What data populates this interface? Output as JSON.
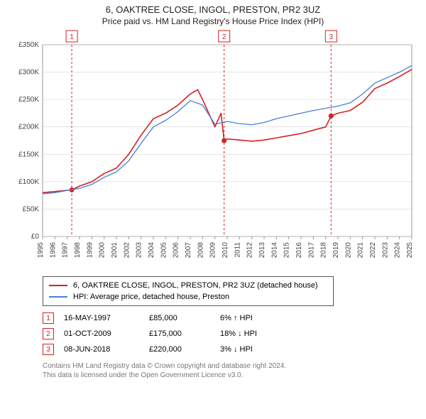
{
  "title": "6, OAKTREE CLOSE, INGOL, PRESTON, PR2 3UZ",
  "subtitle": "Price paid vs. HM Land Registry's House Price Index (HPI)",
  "chart": {
    "type": "line",
    "background_color": "#ffffff",
    "grid_color": "#cccccc",
    "label_fontsize": 10,
    "x": {
      "min": 1995,
      "max": 2025,
      "tick_step": 1
    },
    "y": {
      "min": 0,
      "max": 350000,
      "tick_step": 50000,
      "tick_labels": [
        "£0",
        "£50K",
        "£100K",
        "£150K",
        "£200K",
        "£250K",
        "£300K",
        "£350K"
      ]
    },
    "series": [
      {
        "name": "6, OAKTREE CLOSE, INGOL, PRESTON, PR2 3UZ (detached house)",
        "color": "#d62020",
        "line_width": 1.6,
        "points": [
          [
            1995,
            80000
          ],
          [
            1996,
            82000
          ],
          [
            1997.37,
            85000
          ],
          [
            1998,
            92000
          ],
          [
            1999,
            100000
          ],
          [
            2000,
            115000
          ],
          [
            2001,
            125000
          ],
          [
            2002,
            150000
          ],
          [
            2003,
            185000
          ],
          [
            2004,
            215000
          ],
          [
            2005,
            225000
          ],
          [
            2006,
            240000
          ],
          [
            2007,
            260000
          ],
          [
            2007.6,
            268000
          ],
          [
            2008,
            250000
          ],
          [
            2009,
            200000
          ],
          [
            2009.5,
            225000
          ],
          [
            2009.75,
            175000
          ],
          [
            2010,
            178000
          ],
          [
            2011,
            176000
          ],
          [
            2012,
            174000
          ],
          [
            2013,
            176000
          ],
          [
            2014,
            180000
          ],
          [
            2015,
            184000
          ],
          [
            2016,
            188000
          ],
          [
            2017,
            194000
          ],
          [
            2018,
            200000
          ],
          [
            2018.44,
            220000
          ],
          [
            2019,
            225000
          ],
          [
            2020,
            230000
          ],
          [
            2021,
            245000
          ],
          [
            2022,
            270000
          ],
          [
            2023,
            280000
          ],
          [
            2024,
            292000
          ],
          [
            2025,
            305000
          ]
        ]
      },
      {
        "name": "HPI: Average price, detached house, Preston",
        "color": "#4a7fd6",
        "line_width": 1.3,
        "points": [
          [
            1995,
            78000
          ],
          [
            1996,
            80000
          ],
          [
            1997,
            84000
          ],
          [
            1998,
            88000
          ],
          [
            1999,
            95000
          ],
          [
            2000,
            108000
          ],
          [
            2001,
            118000
          ],
          [
            2002,
            138000
          ],
          [
            2003,
            170000
          ],
          [
            2004,
            200000
          ],
          [
            2005,
            212000
          ],
          [
            2006,
            228000
          ],
          [
            2007,
            248000
          ],
          [
            2008,
            240000
          ],
          [
            2009,
            205000
          ],
          [
            2010,
            210000
          ],
          [
            2011,
            206000
          ],
          [
            2012,
            204000
          ],
          [
            2013,
            208000
          ],
          [
            2014,
            215000
          ],
          [
            2015,
            220000
          ],
          [
            2016,
            225000
          ],
          [
            2017,
            230000
          ],
          [
            2018,
            234000
          ],
          [
            2019,
            238000
          ],
          [
            2020,
            244000
          ],
          [
            2021,
            260000
          ],
          [
            2022,
            280000
          ],
          [
            2023,
            290000
          ],
          [
            2024,
            300000
          ],
          [
            2025,
            312000
          ]
        ]
      }
    ],
    "event_markers": [
      {
        "n": "1",
        "x": 1997.37,
        "y": 85000,
        "color": "#d62020"
      },
      {
        "n": "2",
        "x": 2009.75,
        "y": 175000,
        "color": "#d62020"
      },
      {
        "n": "3",
        "x": 2018.44,
        "y": 220000,
        "color": "#d62020"
      }
    ],
    "event_line_dash": "3,3"
  },
  "legend": {
    "items": [
      {
        "label": "6, OAKTREE CLOSE, INGOL, PRESTON, PR2 3UZ (detached house)",
        "color": "#d62020"
      },
      {
        "label": "HPI: Average price, detached house, Preston",
        "color": "#4a7fd6"
      }
    ]
  },
  "events_table": [
    {
      "n": "1",
      "date": "16-MAY-1997",
      "price": "£85,000",
      "delta": "6% ↑ HPI",
      "color": "#d62020"
    },
    {
      "n": "2",
      "date": "01-OCT-2009",
      "price": "£175,000",
      "delta": "18% ↓ HPI",
      "color": "#d62020"
    },
    {
      "n": "3",
      "date": "08-JUN-2018",
      "price": "£220,000",
      "delta": "3% ↓ HPI",
      "color": "#d62020"
    }
  ],
  "footer": {
    "line1": "Contains HM Land Registry data © Crown copyright and database right 2024.",
    "line2": "This data is licensed under the Open Government Licence v3.0."
  }
}
